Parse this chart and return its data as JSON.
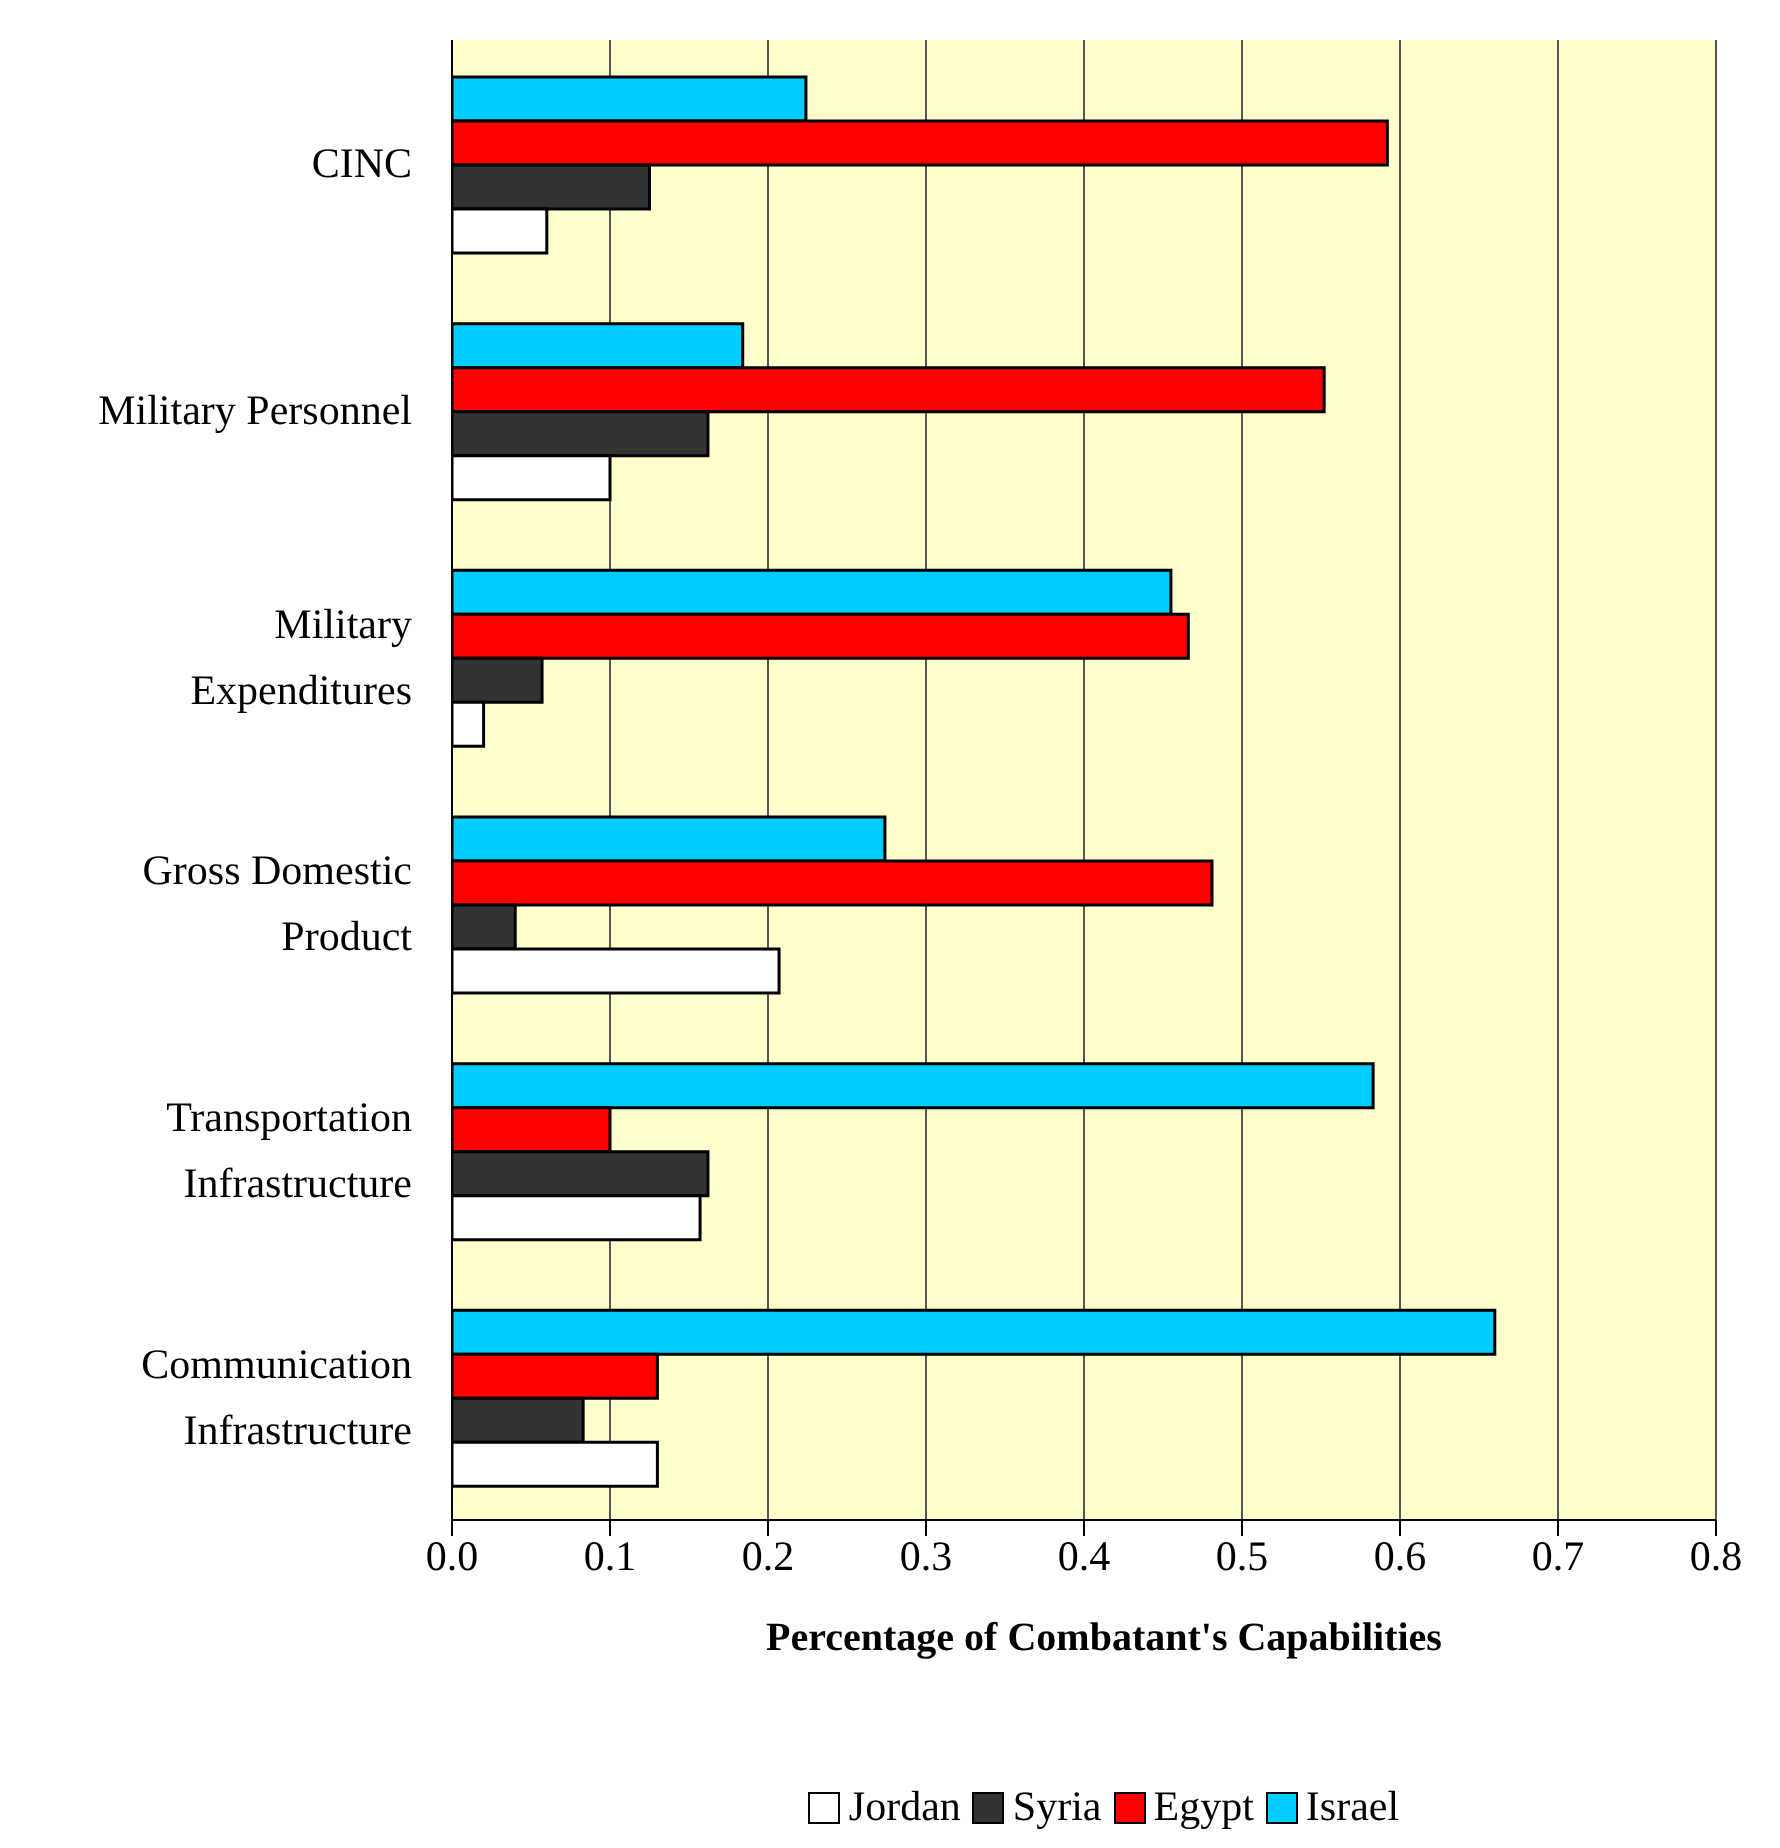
{
  "chart_data": {
    "type": "bar",
    "orientation": "horizontal",
    "xlabel": "Percentage of Combatant's Capabilities",
    "categories": [
      "CINC",
      "Military Personnel",
      "Military Expenditures",
      "Gross Domestic Product",
      "Transportation Infrastructure",
      "Communication Infrastructure"
    ],
    "series": [
      {
        "name": "Jordan",
        "color": "#ffffff",
        "values": [
          0.06,
          0.1,
          0.02,
          0.207,
          0.157,
          0.13
        ]
      },
      {
        "name": "Syria",
        "color": "#333333",
        "values": [
          0.125,
          0.162,
          0.057,
          0.04,
          0.162,
          0.083
        ]
      },
      {
        "name": "Egypt",
        "color": "#ff0000",
        "values": [
          0.592,
          0.552,
          0.466,
          0.481,
          0.1,
          0.13
        ]
      },
      {
        "name": "Israel",
        "color": "#00ccff",
        "values": [
          0.224,
          0.184,
          0.455,
          0.274,
          0.583,
          0.66
        ]
      }
    ],
    "xlim": [
      0,
      0.8
    ],
    "xticks": [
      {
        "value": 0,
        "label": "0.0"
      },
      0.1,
      0.2,
      0.3,
      0.4,
      0.5,
      0.6,
      0.7,
      0.8
    ],
    "grid": "x",
    "legend": "bottom"
  }
}
